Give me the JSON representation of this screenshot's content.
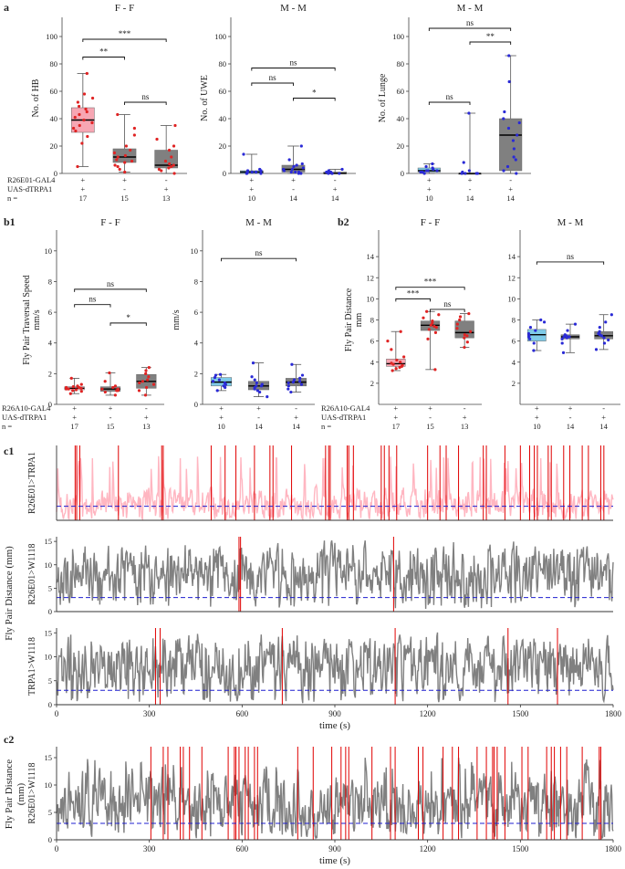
{
  "labels": {
    "panel_a": "a",
    "panel_b1": "b1",
    "panel_b2": "b2",
    "panel_c1": "c1",
    "panel_c2": "c2",
    "c1_ylabel": "Fly Pair Distance (mm)",
    "c2_ylabel_line1": "Fly Pair Distance",
    "c2_ylabel_line2": "(mm)",
    "time_xlabel": "time (s)"
  },
  "colors": {
    "ff_box": "#f7a6b3",
    "ff_point": "#e02424",
    "mm_box_ctrl": "#7fcbe8",
    "mm_point": "#2a2ad6",
    "gray_box": "#808080",
    "trace_pink": "#ffb6c1",
    "trace_gray": "#808080",
    "event_red": "#e00000",
    "threshold_blue": "#1f1fd0"
  },
  "chart_data": [
    {
      "id": "a1",
      "type": "box",
      "title": "F - F",
      "ylabel": "No. of HB",
      "ylim": [
        0,
        110
      ],
      "yticks": [
        0,
        20,
        40,
        60,
        80,
        100
      ],
      "boxes": [
        {
          "q1": 30,
          "median": 39,
          "q3": 48,
          "whisker_low": 5,
          "whisker_high": 73,
          "fill": "ff",
          "points": [
            5,
            22,
            27,
            31,
            33,
            35,
            37,
            39,
            41,
            43,
            45,
            47,
            49,
            52,
            55,
            58,
            73
          ]
        },
        {
          "q1": 8,
          "median": 12,
          "q3": 18,
          "whisker_low": 1,
          "whisker_high": 43,
          "fill": "gray",
          "points": [
            1,
            3,
            5,
            8,
            9,
            10,
            12,
            13,
            15,
            17,
            20,
            28,
            43,
            33,
            6
          ]
        },
        {
          "q1": 4,
          "median": 6,
          "q3": 17,
          "whisker_low": 0,
          "whisker_high": 35,
          "fill": "gray",
          "points": [
            0,
            2,
            3,
            4,
            5,
            6,
            7,
            9,
            12,
            17,
            20,
            25,
            35
          ]
        }
      ],
      "point_color": "ff_point",
      "brackets": [
        {
          "from": 0,
          "to": 1,
          "label": "**",
          "y": 85
        },
        {
          "from": 0,
          "to": 2,
          "label": "***",
          "y": 98
        },
        {
          "from": 1,
          "to": 2,
          "label": "ns",
          "y": 52
        }
      ],
      "genotype_rows": {
        "labels": [
          "R26E01-GAL4",
          "UAS-dTRPA1",
          "n ="
        ],
        "values": [
          [
            "+",
            "+",
            "17"
          ],
          [
            "+",
            "-",
            "15"
          ],
          [
            "-",
            "+",
            "13"
          ]
        ]
      }
    },
    {
      "id": "a2",
      "type": "box",
      "title": "M - M",
      "ylabel": "No. of UWE",
      "ylim": [
        0,
        110
      ],
      "yticks": [
        0,
        20,
        40,
        60,
        80,
        100
      ],
      "boxes": [
        {
          "q1": 0,
          "median": 1,
          "q3": 2,
          "whisker_low": 0,
          "whisker_high": 14,
          "fill": "mm",
          "points": [
            0,
            0,
            0,
            1,
            1,
            1,
            2,
            2,
            3,
            14
          ]
        },
        {
          "q1": 1,
          "median": 3,
          "q3": 6,
          "whisker_low": 0,
          "whisker_high": 20,
          "fill": "gray",
          "points": [
            0,
            0,
            1,
            1,
            2,
            3,
            3,
            4,
            5,
            6,
            7,
            10,
            20,
            1
          ]
        },
        {
          "q1": 0,
          "median": 0,
          "q3": 1,
          "whisker_low": 0,
          "whisker_high": 3,
          "fill": "gray",
          "points": [
            0,
            0,
            0,
            0,
            1,
            1,
            2,
            3
          ]
        }
      ],
      "point_color": "mm_point",
      "brackets": [
        {
          "from": 0,
          "to": 1,
          "label": "ns",
          "y": 66
        },
        {
          "from": 0,
          "to": 2,
          "label": "ns",
          "y": 77
        },
        {
          "from": 1,
          "to": 2,
          "label": "*",
          "y": 55
        }
      ],
      "genotype_rows": {
        "labels": [],
        "values": [
          [
            "+",
            "+",
            "10"
          ],
          [
            "+",
            "-",
            "14"
          ],
          [
            "-",
            "+",
            "14"
          ]
        ]
      }
    },
    {
      "id": "a3",
      "type": "box",
      "title": "M - M",
      "ylabel": "No. of Lunge",
      "ylim": [
        0,
        110
      ],
      "yticks": [
        0,
        20,
        40,
        60,
        80,
        100
      ],
      "boxes": [
        {
          "q1": 1,
          "median": 2,
          "q3": 4,
          "whisker_low": 0,
          "whisker_high": 7,
          "fill": "mm",
          "points": [
            0,
            1,
            1,
            2,
            2,
            3,
            4,
            5,
            7,
            2
          ]
        },
        {
          "q1": 0,
          "median": 0,
          "q3": 0,
          "whisker_low": 0,
          "whisker_high": 44,
          "fill": "gray",
          "points": [
            0,
            0,
            0,
            0,
            1,
            2,
            8,
            44
          ]
        },
        {
          "q1": 2,
          "median": 28,
          "q3": 40,
          "whisker_low": 0,
          "whisker_high": 86,
          "fill": "gray",
          "points": [
            0,
            2,
            5,
            10,
            18,
            24,
            28,
            33,
            37,
            40,
            45,
            67,
            86,
            12
          ]
        }
      ],
      "point_color": "mm_point",
      "brackets": [
        {
          "from": 0,
          "to": 1,
          "label": "ns",
          "y": 52
        },
        {
          "from": 0,
          "to": 2,
          "label": "ns",
          "y": 106
        },
        {
          "from": 1,
          "to": 2,
          "label": "**",
          "y": 96
        }
      ],
      "genotype_rows": {
        "labels": [],
        "values": [
          [
            "+",
            "+",
            "10"
          ],
          [
            "+",
            "-",
            "14"
          ],
          [
            "-",
            "+",
            "14"
          ]
        ]
      }
    },
    {
      "id": "b1a",
      "type": "box",
      "title": "F - F",
      "ylabel_line1": "Fly Pair Traversal Speed",
      "ylabel_line2": "mm/s",
      "ylim": [
        0,
        11
      ],
      "yticks": [
        0,
        2,
        4,
        6,
        8,
        10
      ],
      "boxes": [
        {
          "q1": 0.95,
          "median": 1.05,
          "q3": 1.15,
          "whisker_low": 0.7,
          "whisker_high": 1.7,
          "fill": "ff",
          "points": [
            0.7,
            0.85,
            0.9,
            0.95,
            1.0,
            1.05,
            1.1,
            1.1,
            1.15,
            1.2,
            1.3,
            1.7,
            1.0
          ]
        },
        {
          "q1": 0.85,
          "median": 1.0,
          "q3": 1.15,
          "whisker_low": 0.6,
          "whisker_high": 2.05,
          "fill": "gray",
          "points": [
            0.6,
            0.8,
            0.9,
            0.95,
            1.0,
            1.0,
            1.1,
            1.2,
            1.5,
            2.05,
            0.9
          ]
        },
        {
          "q1": 1.05,
          "median": 1.5,
          "q3": 1.95,
          "whisker_low": 0.6,
          "whisker_high": 2.4,
          "fill": "gray",
          "points": [
            0.6,
            0.9,
            1.1,
            1.3,
            1.5,
            1.6,
            1.8,
            2.0,
            2.2,
            2.4,
            1.4
          ]
        }
      ],
      "point_color": "ff_point",
      "brackets": [
        {
          "from": 0,
          "to": 1,
          "label": "ns",
          "y": 6.5
        },
        {
          "from": 0,
          "to": 2,
          "label": "ns",
          "y": 7.5
        },
        {
          "from": 1,
          "to": 2,
          "label": "*",
          "y": 5.3
        }
      ],
      "genotype_rows": {
        "labels": [
          "R26A10-GAL4",
          "UAS-dTRPA1",
          "n ="
        ],
        "values": [
          [
            "+",
            "+",
            "17"
          ],
          [
            "+",
            "-",
            "15"
          ],
          [
            "-",
            "+",
            "13"
          ]
        ]
      }
    },
    {
      "id": "b1b",
      "type": "box",
      "title": "M - M",
      "ylabel": "mm/s",
      "ylim": [
        0,
        11
      ],
      "yticks": [
        0,
        2,
        4,
        6,
        8,
        10
      ],
      "boxes": [
        {
          "q1": 1.2,
          "median": 1.45,
          "q3": 1.75,
          "whisker_low": 0.9,
          "whisker_high": 1.95,
          "fill": "mm",
          "points": [
            0.9,
            1.1,
            1.2,
            1.3,
            1.4,
            1.5,
            1.6,
            1.75,
            1.9,
            1.95
          ]
        },
        {
          "q1": 0.95,
          "median": 1.2,
          "q3": 1.5,
          "whisker_low": 0.5,
          "whisker_high": 2.7,
          "fill": "gray",
          "points": [
            0.5,
            0.8,
            0.9,
            1.0,
            1.1,
            1.2,
            1.3,
            1.4,
            1.6,
            1.8,
            2.7,
            1.2
          ]
        },
        {
          "q1": 1.2,
          "median": 1.45,
          "q3": 1.7,
          "whisker_low": 0.8,
          "whisker_high": 2.6,
          "fill": "gray",
          "points": [
            0.8,
            1.0,
            1.2,
            1.3,
            1.4,
            1.5,
            1.6,
            1.7,
            1.9,
            2.6,
            1.45
          ]
        }
      ],
      "point_color": "mm_point",
      "brackets": [
        {
          "from": 0,
          "to": 2,
          "label": "ns",
          "y": 9.5
        }
      ],
      "genotype_rows": {
        "labels": [],
        "values": [
          [
            "+",
            "+",
            "10"
          ],
          [
            "+",
            "-",
            "14"
          ],
          [
            "-",
            "+",
            "14"
          ]
        ]
      }
    },
    {
      "id": "b2a",
      "type": "box",
      "title": "F - F",
      "ylabel_line1": "Fly Pair Distance",
      "ylabel_line2": "mm",
      "ylim": [
        0,
        16
      ],
      "yticks": [
        2,
        4,
        6,
        8,
        10,
        12,
        14
      ],
      "boxes": [
        {
          "q1": 3.6,
          "median": 3.85,
          "q3": 4.3,
          "whisker_low": 3.2,
          "whisker_high": 6.9,
          "fill": "ff",
          "points": [
            3.2,
            3.4,
            3.6,
            3.7,
            3.8,
            3.9,
            4.0,
            4.2,
            4.5,
            5.2,
            6.0,
            6.9,
            3.5
          ]
        },
        {
          "q1": 7.0,
          "median": 7.5,
          "q3": 7.9,
          "whisker_low": 3.3,
          "whisker_high": 8.8,
          "fill": "gray",
          "points": [
            3.3,
            6.2,
            6.8,
            7.1,
            7.3,
            7.5,
            7.7,
            7.9,
            8.2,
            8.5,
            8.8,
            7.4
          ]
        },
        {
          "q1": 6.3,
          "median": 6.8,
          "q3": 7.9,
          "whisker_low": 5.4,
          "whisker_high": 8.6,
          "fill": "gray",
          "points": [
            5.4,
            5.9,
            6.3,
            6.6,
            6.9,
            7.2,
            7.6,
            8.0,
            8.3,
            8.6,
            6.5
          ]
        }
      ],
      "point_color": "ff_point",
      "brackets": [
        {
          "from": 0,
          "to": 1,
          "label": "***",
          "y": 10.0
        },
        {
          "from": 0,
          "to": 2,
          "label": "***",
          "y": 11.1
        },
        {
          "from": 1,
          "to": 2,
          "label": "ns",
          "y": 9.0
        }
      ],
      "genotype_rows": {
        "labels": [
          "R26A10-GAL4",
          "UAS-dTRPA1",
          "n ="
        ],
        "values": [
          [
            "+",
            "+",
            "17"
          ],
          [
            "+",
            "-",
            "15"
          ],
          [
            "-",
            "+",
            "13"
          ]
        ]
      }
    },
    {
      "id": "b2b",
      "type": "box",
      "title": "M - M",
      "ylabel": "",
      "ylim": [
        0,
        16
      ],
      "yticks": [
        2,
        4,
        6,
        8,
        10,
        12,
        14
      ],
      "boxes": [
        {
          "q1": 6.0,
          "median": 6.6,
          "q3": 7.1,
          "whisker_low": 5.1,
          "whisker_high": 8.0,
          "fill": "mm",
          "points": [
            5.1,
            5.8,
            6.2,
            6.5,
            6.7,
            7.0,
            7.3,
            7.8,
            8.0,
            6.4
          ]
        },
        {
          "q1": 6.2,
          "median": 6.4,
          "q3": 6.6,
          "whisker_low": 4.9,
          "whisker_high": 7.6,
          "fill": "gray",
          "points": [
            4.9,
            5.8,
            6.2,
            6.3,
            6.4,
            6.5,
            6.6,
            7.0,
            7.6,
            6.4
          ]
        },
        {
          "q1": 6.2,
          "median": 6.5,
          "q3": 6.9,
          "whisker_low": 5.2,
          "whisker_high": 8.5,
          "fill": "gray",
          "points": [
            5.2,
            5.8,
            6.1,
            6.3,
            6.5,
            6.7,
            6.9,
            7.3,
            7.8,
            8.5,
            6.6
          ]
        }
      ],
      "point_color": "mm_point",
      "brackets": [
        {
          "from": 0,
          "to": 2,
          "label": "ns",
          "y": 13.5
        }
      ],
      "genotype_rows": {
        "labels": [],
        "values": [
          [
            "+",
            "+",
            "10"
          ],
          [
            "+",
            "-",
            "14"
          ],
          [
            "-",
            "+",
            "14"
          ]
        ]
      }
    }
  ],
  "trace_data": [
    {
      "id": "c1a",
      "label": "R26E01>TRPA1",
      "color": "trace_pink",
      "seed": 7,
      "ylim": [
        0,
        16
      ],
      "base": 3.5,
      "amp": 7,
      "threshold": 3,
      "show_yticks": false,
      "show_xticks": false,
      "events": [
        60,
        65,
        75,
        200,
        340,
        345,
        500,
        545,
        580,
        640,
        690,
        700,
        760,
        870,
        880,
        885,
        940,
        945,
        960,
        1050,
        1060,
        1075,
        1100,
        1200,
        1240,
        1260,
        1300,
        1380,
        1390,
        1450,
        1500,
        1530,
        1545,
        1555,
        1590,
        1600,
        1640,
        1660,
        1700,
        1720,
        1760,
        1770
      ]
    },
    {
      "id": "c1b",
      "label": "R26E01>W1118",
      "color": "trace_gray",
      "seed": 21,
      "ylim": [
        0,
        16
      ],
      "yticks": [
        0,
        5,
        10,
        15
      ],
      "base": 8,
      "amp": 13,
      "threshold": 3,
      "show_yticks": true,
      "show_xticks": false,
      "events": [
        590,
        595,
        1090
      ]
    },
    {
      "id": "c1c",
      "label": "TRPA1>W1118",
      "color": "trace_gray",
      "seed": 41,
      "ylim": [
        0,
        16
      ],
      "yticks": [
        0,
        5,
        10,
        15
      ],
      "base": 8,
      "amp": 13,
      "threshold": 3,
      "show_yticks": true,
      "show_xticks": true,
      "events": [
        320,
        335,
        730,
        1095,
        1460,
        1620
      ]
    },
    {
      "id": "c2",
      "label": "R26E01>W1118",
      "color": "trace_gray",
      "seed": 77,
      "ylim": [
        0,
        17
      ],
      "yticks": [
        0,
        5,
        10,
        15
      ],
      "base": 6.5,
      "amp": 12,
      "threshold": 3,
      "show_yticks": true,
      "show_xticks": true,
      "events": [
        305,
        345,
        360,
        400,
        410,
        430,
        470,
        555,
        575,
        580,
        590,
        610,
        620,
        640,
        650,
        780,
        830,
        890,
        920,
        935,
        945,
        1020,
        1080,
        1095,
        1170,
        1185,
        1250,
        1280,
        1300,
        1360,
        1390,
        1410,
        1415,
        1425,
        1450,
        1505,
        1525,
        1585,
        1600,
        1610,
        1630,
        1650,
        1700,
        1755,
        1760
      ]
    }
  ],
  "time_axis": {
    "xlim": [
      0,
      1800
    ],
    "xticks": [
      0,
      300,
      600,
      900,
      1200,
      1500,
      1800
    ],
    "ytick_labels": [
      "0",
      "5",
      "10",
      "15"
    ]
  }
}
